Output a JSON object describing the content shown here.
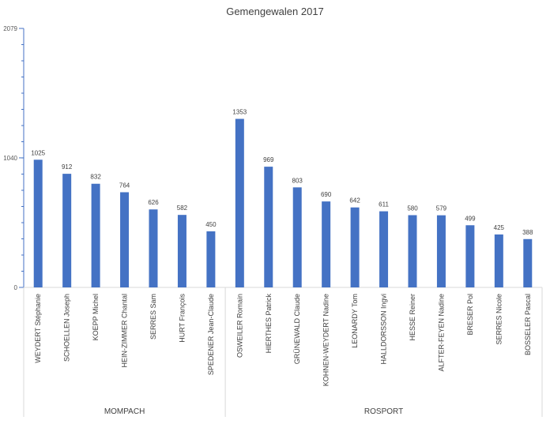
{
  "chart_data": {
    "type": "bar",
    "title": "Gemengewalen 2017",
    "xlabel": "",
    "ylabel": "",
    "ylim": [
      0,
      2079
    ],
    "yticks": [
      0,
      1040,
      2079
    ],
    "grid": false,
    "legend": "none",
    "bar_color": "#4472C4",
    "categories": [
      "WEYDERT Stéphanie",
      "SCHOELLEN Joseph",
      "KOEPP Michel",
      "HEIN-ZIMMER Chantal",
      "SERRES Sam",
      "HURT François",
      "SPEDENER Jean-Claude",
      "OSWEILER Romain",
      "HIERTHES Patrick",
      "GRÜNEWALD Claude",
      "KOHNEN-WEYDERT Nadine",
      "LEONARDY Tom",
      "HALLDORSSON Ingvi",
      "HESSE Reiner",
      "ALFTER-FEYEN Nadine",
      "BRESER Pol",
      "SERRES Nicole",
      "BOSSELER Pascal"
    ],
    "values": [
      1025,
      912,
      832,
      764,
      626,
      582,
      450,
      1353,
      969,
      803,
      690,
      642,
      611,
      580,
      579,
      499,
      425,
      388
    ],
    "groups": [
      {
        "name": "MOMPACH",
        "count": 7
      },
      {
        "name": "ROSPORT",
        "count": 11
      }
    ]
  }
}
